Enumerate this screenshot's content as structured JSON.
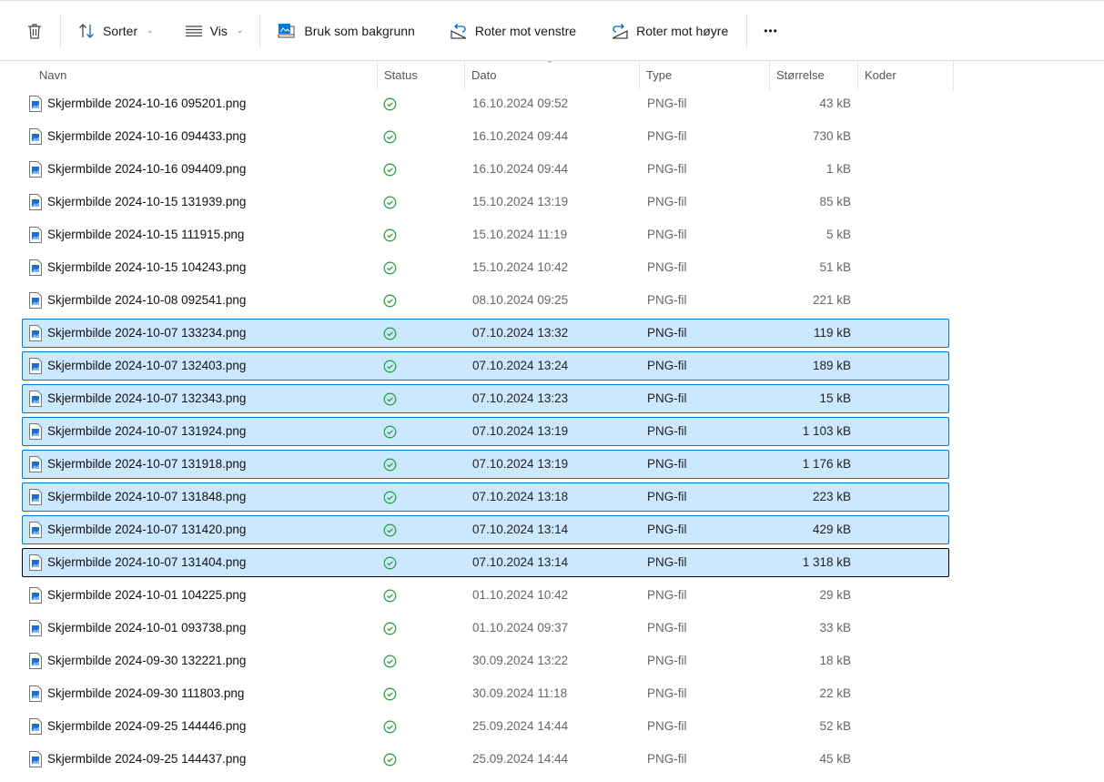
{
  "toolbar": {
    "delete_icon": "trash-icon",
    "sort_label": "Sorter",
    "view_label": "Vis",
    "set_background_label": "Bruk som bakgrunn",
    "rotate_left_label": "Roter mot venstre",
    "rotate_right_label": "Roter mot høyre",
    "more_label": "•••"
  },
  "columns": [
    "Navn",
    "Status",
    "Dato",
    "Type",
    "Størrelse",
    "Koder"
  ],
  "colors": {
    "selected_bg": "#cce8ff",
    "selected_border": "#0078d4",
    "status_green": "#2e9e4a"
  },
  "files": [
    {
      "name": "Skjermbilde 2024-10-16 095201.png",
      "date": "16.10.2024 09:52",
      "type": "PNG-fil",
      "size": "43 kB",
      "selected": false
    },
    {
      "name": "Skjermbilde 2024-10-16 094433.png",
      "date": "16.10.2024 09:44",
      "type": "PNG-fil",
      "size": "730 kB",
      "selected": false
    },
    {
      "name": "Skjermbilde 2024-10-16 094409.png",
      "date": "16.10.2024 09:44",
      "type": "PNG-fil",
      "size": "1 kB",
      "selected": false
    },
    {
      "name": "Skjermbilde 2024-10-15 131939.png",
      "date": "15.10.2024 13:19",
      "type": "PNG-fil",
      "size": "85 kB",
      "selected": false
    },
    {
      "name": "Skjermbilde 2024-10-15 111915.png",
      "date": "15.10.2024 11:19",
      "type": "PNG-fil",
      "size": "5 kB",
      "selected": false
    },
    {
      "name": "Skjermbilde 2024-10-15 104243.png",
      "date": "15.10.2024 10:42",
      "type": "PNG-fil",
      "size": "51 kB",
      "selected": false
    },
    {
      "name": "Skjermbilde 2024-10-08 092541.png",
      "date": "08.10.2024 09:25",
      "type": "PNG-fil",
      "size": "221 kB",
      "selected": false
    },
    {
      "name": "Skjermbilde 2024-10-07 133234.png",
      "date": "07.10.2024 13:32",
      "type": "PNG-fil",
      "size": "119 kB",
      "selected": true
    },
    {
      "name": "Skjermbilde 2024-10-07 132403.png",
      "date": "07.10.2024 13:24",
      "type": "PNG-fil",
      "size": "189 kB",
      "selected": true
    },
    {
      "name": "Skjermbilde 2024-10-07 132343.png",
      "date": "07.10.2024 13:23",
      "type": "PNG-fil",
      "size": "15 kB",
      "selected": true
    },
    {
      "name": "Skjermbilde 2024-10-07 131924.png",
      "date": "07.10.2024 13:19",
      "type": "PNG-fil",
      "size": "1 103 kB",
      "selected": true
    },
    {
      "name": "Skjermbilde 2024-10-07 131918.png",
      "date": "07.10.2024 13:19",
      "type": "PNG-fil",
      "size": "1 176 kB",
      "selected": true
    },
    {
      "name": "Skjermbilde 2024-10-07 131848.png",
      "date": "07.10.2024 13:18",
      "type": "PNG-fil",
      "size": "223 kB",
      "selected": true
    },
    {
      "name": "Skjermbilde 2024-10-07 131420.png",
      "date": "07.10.2024 13:14",
      "type": "PNG-fil",
      "size": "429 kB",
      "selected": true
    },
    {
      "name": "Skjermbilde 2024-10-07 131404.png",
      "date": "07.10.2024 13:14",
      "type": "PNG-fil",
      "size": "1 318 kB",
      "selected": true,
      "focused": true
    },
    {
      "name": "Skjermbilde 2024-10-01 104225.png",
      "date": "01.10.2024 10:42",
      "type": "PNG-fil",
      "size": "29 kB",
      "selected": false
    },
    {
      "name": "Skjermbilde 2024-10-01 093738.png",
      "date": "01.10.2024 09:37",
      "type": "PNG-fil",
      "size": "33 kB",
      "selected": false
    },
    {
      "name": "Skjermbilde 2024-09-30 132221.png",
      "date": "30.09.2024 13:22",
      "type": "PNG-fil",
      "size": "18 kB",
      "selected": false
    },
    {
      "name": "Skjermbilde 2024-09-30 111803.png",
      "date": "30.09.2024 11:18",
      "type": "PNG-fil",
      "size": "22 kB",
      "selected": false
    },
    {
      "name": "Skjermbilde 2024-09-25 144446.png",
      "date": "25.09.2024 14:44",
      "type": "PNG-fil",
      "size": "52 kB",
      "selected": false
    },
    {
      "name": "Skjermbilde 2024-09-25 144437.png",
      "date": "25.09.2024 14:44",
      "type": "PNG-fil",
      "size": "45 kB",
      "selected": false
    }
  ]
}
